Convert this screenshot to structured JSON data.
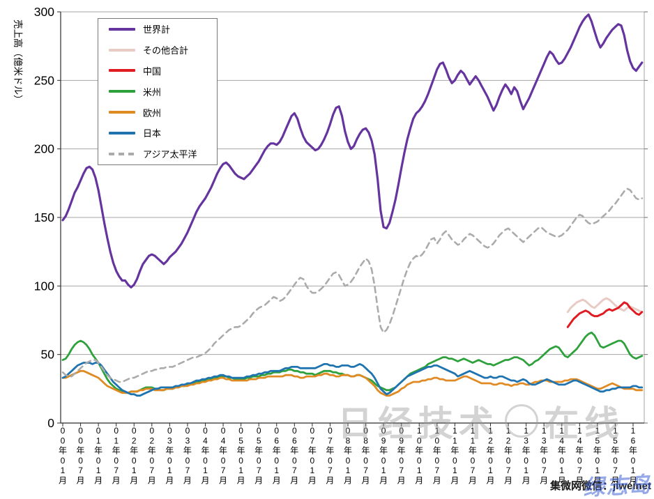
{
  "watermarks": {
    "center_left": "日经技术",
    "center_right": "在线",
    "bottom_text": "集微网微信：jiweinet",
    "overlay_text": "绿志岛"
  },
  "chart_data": {
    "type": "line",
    "title": "",
    "xlabel": "",
    "ylabel": "売上高（億米ドル）",
    "ylim": [
      0,
      300
    ],
    "y_ticks": [
      0,
      50,
      100,
      150,
      200,
      250,
      300
    ],
    "grid": true,
    "legend_position": "upper-left-inside",
    "x_start": "2000-01",
    "x_end": "2016-04",
    "x_frequency": "monthly",
    "x_tick_labels": [
      "00年01月",
      "00年07月",
      "01年01月",
      "01年07月",
      "02年01月",
      "02年07月",
      "03年01月",
      "03年07月",
      "04年01月",
      "04年07月",
      "05年01月",
      "05年07月",
      "06年01月",
      "06年07月",
      "07年01月",
      "07年07月",
      "08年01月",
      "08年07月",
      "09年01月",
      "09年07月",
      "10年01月",
      "10年07月",
      "11年01月",
      "11年07月",
      "12年01月",
      "12年07月",
      "13年01月",
      "13年07月",
      "14年01月",
      "14年07月",
      "15年01月",
      "15年07月",
      "16年01月"
    ],
    "series": [
      {
        "name": "世界計",
        "color": "#66349E",
        "dash": null,
        "width": 3.2,
        "start": 0,
        "values": [
          148,
          151,
          156,
          162,
          168,
          172,
          177,
          182,
          186,
          187,
          185,
          179,
          170,
          158,
          146,
          135,
          125,
          117,
          111,
          107,
          104,
          104,
          101,
          99,
          101,
          105,
          111,
          116,
          119,
          122,
          123,
          122,
          120,
          118,
          116,
          118,
          121,
          123,
          125,
          128,
          131,
          135,
          139,
          144,
          149,
          154,
          158,
          161,
          164,
          168,
          172,
          177,
          182,
          186,
          189,
          190,
          188,
          185,
          182,
          180,
          179,
          178,
          180,
          182,
          185,
          188,
          191,
          195,
          199,
          202,
          204,
          204,
          203,
          205,
          209,
          214,
          219,
          224,
          226,
          222,
          215,
          209,
          205,
          203,
          201,
          199,
          200,
          203,
          207,
          212,
          218,
          225,
          230,
          231,
          224,
          213,
          205,
          200,
          202,
          207,
          211,
          214,
          215,
          212,
          206,
          196,
          178,
          155,
          143,
          142,
          146,
          154,
          163,
          174,
          186,
          197,
          207,
          215,
          222,
          226,
          228,
          231,
          235,
          240,
          246,
          252,
          258,
          262,
          263,
          258,
          252,
          248,
          250,
          254,
          257,
          255,
          251,
          247,
          250,
          253,
          250,
          246,
          242,
          238,
          233,
          228,
          232,
          238,
          243,
          247,
          244,
          240,
          245,
          242,
          235,
          229,
          233,
          237,
          242,
          247,
          252,
          257,
          262,
          267,
          271,
          269,
          265,
          262,
          263,
          266,
          270,
          274,
          279,
          284,
          289,
          293,
          296,
          298,
          293,
          286,
          279,
          274,
          277,
          281,
          284,
          287,
          289,
          291,
          290,
          283,
          272,
          264,
          259,
          257,
          260,
          263
        ]
      },
      {
        "name": "その他合計",
        "color": "#E7CBC4",
        "dash": null,
        "width": 3,
        "start": 170,
        "values": [
          81,
          84,
          86,
          88,
          89,
          90,
          89,
          87,
          85,
          84,
          86,
          88,
          90,
          91,
          90,
          88,
          86,
          84,
          83,
          82,
          84,
          85,
          84,
          83,
          82,
          81
        ]
      },
      {
        "name": "中国",
        "color": "#E01B22",
        "dash": null,
        "width": 3,
        "start": 170,
        "values": [
          70,
          73,
          76,
          78,
          80,
          81,
          82,
          81,
          79,
          78,
          78,
          79,
          80,
          82,
          83,
          82,
          83,
          84,
          86,
          88,
          87,
          84,
          82,
          80,
          79,
          81
        ]
      },
      {
        "name": "米州",
        "color": "#2EA13C",
        "dash": null,
        "width": 2.8,
        "start": 0,
        "values": [
          46,
          47,
          50,
          54,
          57,
          59,
          60,
          59,
          57,
          54,
          50,
          47,
          44,
          40,
          36,
          32,
          29,
          27,
          25,
          24,
          23,
          22,
          22,
          23,
          23,
          23,
          24,
          25,
          26,
          26,
          26,
          25,
          25,
          24,
          24,
          25,
          25,
          25,
          26,
          26,
          27,
          27,
          28,
          28,
          29,
          30,
          30,
          31,
          31,
          32,
          32,
          33,
          33,
          34,
          34,
          34,
          33,
          33,
          32,
          32,
          32,
          32,
          33,
          33,
          34,
          34,
          34,
          35,
          35,
          36,
          36,
          37,
          37,
          37,
          38,
          38,
          39,
          39,
          38,
          38,
          37,
          37,
          36,
          36,
          36,
          35,
          36,
          37,
          38,
          38,
          38,
          37,
          37,
          36,
          36,
          35,
          35,
          34,
          34,
          35,
          35,
          34,
          33,
          32,
          31,
          29,
          27,
          26,
          25,
          24,
          24,
          25,
          26,
          28,
          30,
          32,
          34,
          36,
          37,
          38,
          39,
          40,
          41,
          43,
          44,
          45,
          46,
          47,
          48,
          48,
          47,
          47,
          46,
          45,
          46,
          47,
          46,
          45,
          44,
          45,
          46,
          45,
          44,
          43,
          43,
          42,
          43,
          44,
          45,
          46,
          46,
          47,
          48,
          48,
          47,
          46,
          44,
          42,
          43,
          45,
          46,
          48,
          50,
          52,
          54,
          55,
          56,
          55,
          52,
          49,
          48,
          50,
          52,
          54,
          57,
          60,
          63,
          65,
          66,
          64,
          60,
          56,
          55,
          56,
          57,
          58,
          59,
          60,
          60,
          58,
          54,
          50,
          48,
          47,
          48,
          49
        ]
      },
      {
        "name": "欧州",
        "color": "#DF8A23",
        "dash": null,
        "width": 2.8,
        "start": 0,
        "values": [
          33,
          33,
          34,
          35,
          36,
          37,
          38,
          38,
          37,
          36,
          35,
          34,
          33,
          31,
          29,
          27,
          26,
          25,
          24,
          23,
          22,
          22,
          22,
          23,
          23,
          23,
          24,
          24,
          25,
          25,
          25,
          24,
          24,
          24,
          24,
          25,
          25,
          25,
          26,
          26,
          27,
          27,
          27,
          28,
          28,
          29,
          29,
          30,
          30,
          31,
          31,
          32,
          32,
          33,
          33,
          32,
          32,
          31,
          31,
          31,
          31,
          31,
          31,
          32,
          32,
          32,
          33,
          33,
          33,
          34,
          34,
          34,
          34,
          34,
          34,
          35,
          35,
          35,
          34,
          34,
          33,
          33,
          34,
          34,
          34,
          34,
          35,
          35,
          36,
          36,
          35,
          35,
          34,
          34,
          35,
          35,
          35,
          34,
          34,
          35,
          35,
          34,
          33,
          31,
          29,
          27,
          24,
          22,
          21,
          20,
          20,
          21,
          22,
          23,
          25,
          26,
          28,
          29,
          30,
          30,
          30,
          31,
          31,
          32,
          32,
          33,
          33,
          32,
          32,
          31,
          31,
          31,
          31,
          32,
          33,
          34,
          34,
          33,
          32,
          31,
          30,
          29,
          29,
          29,
          29,
          28,
          28,
          29,
          29,
          28,
          28,
          27,
          28,
          28,
          29,
          29,
          28,
          28,
          29,
          30,
          30,
          31,
          31,
          31,
          30,
          30,
          30,
          30,
          30,
          31,
          31,
          32,
          32,
          32,
          31,
          30,
          29,
          28,
          27,
          26,
          25,
          25,
          26,
          27,
          28,
          29,
          28,
          27,
          26,
          25,
          25,
          25,
          25,
          24,
          24,
          24
        ]
      },
      {
        "name": "日本",
        "color": "#1F74B0",
        "dash": null,
        "width": 2.8,
        "start": 0,
        "values": [
          33,
          34,
          36,
          38,
          40,
          42,
          43,
          44,
          44,
          44,
          43,
          44,
          44,
          42,
          39,
          36,
          33,
          30,
          28,
          26,
          24,
          23,
          22,
          21,
          21,
          20,
          20,
          21,
          22,
          23,
          24,
          25,
          25,
          26,
          26,
          26,
          26,
          26,
          27,
          27,
          28,
          28,
          29,
          29,
          30,
          31,
          31,
          32,
          32,
          33,
          33,
          34,
          34,
          35,
          35,
          34,
          34,
          33,
          33,
          33,
          33,
          33,
          34,
          34,
          35,
          35,
          36,
          36,
          37,
          37,
          38,
          38,
          38,
          38,
          39,
          40,
          40,
          41,
          41,
          41,
          40,
          40,
          40,
          40,
          40,
          40,
          41,
          42,
          43,
          43,
          42,
          42,
          41,
          41,
          42,
          42,
          42,
          41,
          41,
          42,
          43,
          42,
          40,
          38,
          36,
          33,
          29,
          25,
          23,
          21,
          22,
          24,
          26,
          28,
          30,
          32,
          34,
          35,
          36,
          37,
          38,
          39,
          40,
          41,
          41,
          42,
          42,
          41,
          40,
          39,
          38,
          37,
          36,
          34,
          35,
          36,
          37,
          38,
          37,
          36,
          35,
          34,
          33,
          33,
          34,
          33,
          33,
          34,
          34,
          33,
          32,
          31,
          31,
          30,
          31,
          32,
          31,
          29,
          28,
          28,
          29,
          30,
          31,
          32,
          31,
          30,
          29,
          28,
          28,
          28,
          29,
          30,
          31,
          31,
          30,
          29,
          28,
          27,
          26,
          25,
          24,
          23,
          23,
          24,
          24,
          25,
          25,
          26,
          26,
          26,
          26,
          26,
          27,
          27,
          26,
          26
        ]
      },
      {
        "name": "アジア太平洋",
        "color": "#ABABAB",
        "dash": "8,6",
        "width": 2.6,
        "start": 0,
        "values": [
          37,
          35,
          34,
          34,
          36,
          38,
          40,
          42,
          44,
          45,
          46,
          46,
          44,
          41,
          38,
          35,
          33,
          32,
          31,
          30,
          30,
          31,
          32,
          33,
          33,
          34,
          35,
          36,
          37,
          38,
          38,
          39,
          39,
          40,
          40,
          41,
          41,
          41,
          42,
          43,
          44,
          45,
          46,
          47,
          48,
          48,
          49,
          50,
          51,
          53,
          55,
          58,
          60,
          62,
          64,
          66,
          68,
          69,
          70,
          70,
          71,
          73,
          75,
          77,
          80,
          82,
          84,
          85,
          86,
          88,
          90,
          92,
          91,
          89,
          90,
          92,
          95,
          98,
          101,
          104,
          106,
          105,
          100,
          97,
          95,
          95,
          96,
          98,
          100,
          103,
          106,
          109,
          110,
          108,
          104,
          100,
          101,
          103,
          106,
          110,
          114,
          117,
          120,
          118,
          112,
          100,
          84,
          70,
          66,
          68,
          72,
          78,
          85,
          92,
          99,
          106,
          112,
          117,
          120,
          122,
          121,
          123,
          126,
          130,
          134,
          135,
          131,
          134,
          138,
          140,
          137,
          134,
          132,
          130,
          131,
          134,
          136,
          138,
          137,
          135,
          133,
          131,
          129,
          128,
          129,
          131,
          134,
          137,
          139,
          141,
          142,
          140,
          138,
          136,
          134,
          132,
          134,
          136,
          138,
          140,
          142,
          143,
          141,
          139,
          138,
          137,
          136,
          136,
          137,
          139,
          141,
          144,
          147,
          150,
          152,
          151,
          148,
          146,
          145,
          146,
          147,
          149,
          151,
          153,
          155,
          158,
          160,
          163,
          166,
          169,
          171,
          170,
          167,
          164,
          163,
          164
        ]
      }
    ]
  }
}
